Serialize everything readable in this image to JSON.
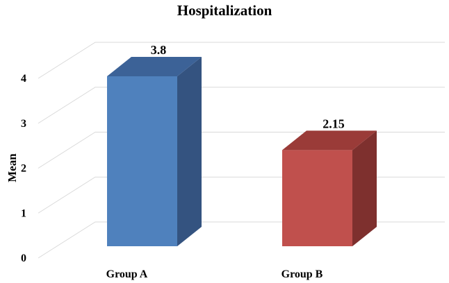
{
  "chart_data": {
    "type": "bar",
    "title": "Hospitalization",
    "xlabel": "",
    "ylabel": "Mean",
    "categories": [
      "Group A",
      "Group B"
    ],
    "series": [
      {
        "values": [
          3.8,
          2.15
        ]
      }
    ],
    "data_labels": [
      "3.8",
      "2.15"
    ],
    "ylim": [
      0,
      4
    ],
    "yticks": [
      0,
      1,
      2,
      3,
      4
    ],
    "grid": true,
    "style": "3d-column",
    "colors": {
      "bars": [
        "#4F81BD",
        "#C0504D"
      ],
      "bar_tops": [
        "#3C6297",
        "#9A3B38"
      ],
      "bar_sides": [
        "#345380",
        "#7E302E"
      ],
      "grid": "#D9D9D9"
    }
  }
}
